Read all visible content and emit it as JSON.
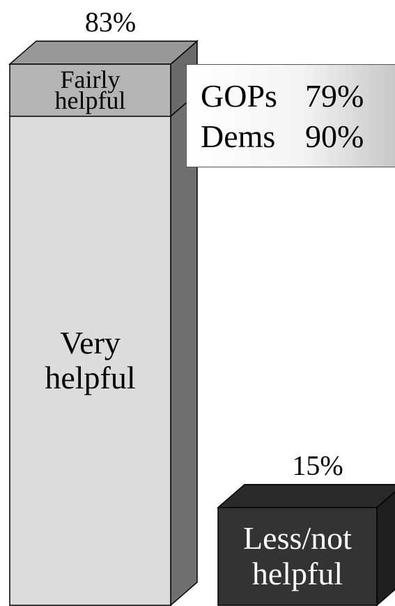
{
  "chart_data": {
    "type": "bar",
    "stacked": true,
    "categories": [
      null,
      null
    ],
    "series": [
      {
        "name": "Very helpful",
        "color": "#dcdcdc",
        "side_color": "#707070",
        "values": [
          75,
          null
        ]
      },
      {
        "name": "Fairly helpful",
        "color": "#b4b4b4",
        "side_color": "#6a6a6a",
        "values": [
          8,
          null
        ]
      },
      {
        "name": "Less/not helpful",
        "color": "#333333",
        "side_color": "#1e1e1e",
        "values": [
          null,
          15
        ]
      }
    ],
    "totals": {
      "values": [
        83,
        15
      ],
      "value_labels": [
        "83%",
        "15%"
      ]
    },
    "inset": {
      "rows": [
        [
          "GOPs",
          "79%"
        ],
        [
          "Dems",
          "90%"
        ]
      ]
    }
  }
}
